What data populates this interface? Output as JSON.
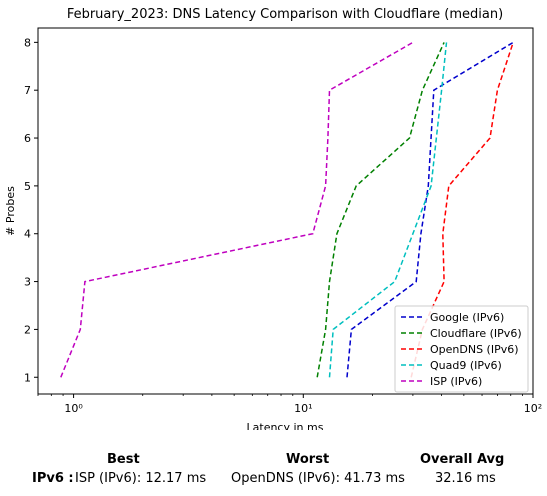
{
  "chart_data": {
    "type": "line",
    "title": "February_2023: DNS Latency Comparison with Cloudflare (median)",
    "xlabel": "Latency in ms",
    "ylabel": "# Probes",
    "xscale": "log",
    "xlim": [
      0.7,
      100
    ],
    "ylim": [
      0.65,
      8.3
    ],
    "xticks": [
      {
        "value": 1,
        "label": "10⁰"
      },
      {
        "value": 10,
        "label": "10¹"
      },
      {
        "value": 100,
        "label": "10²"
      }
    ],
    "yticks": [
      1,
      2,
      3,
      4,
      5,
      6,
      7,
      8
    ],
    "grid": false,
    "legend_position": "lower-right",
    "series": [
      {
        "name": "Google (IPv6)",
        "color": "#0000cc",
        "x": [
          15.5,
          16.2,
          31.0,
          32.5,
          35.0,
          37.0,
          82.0
        ],
        "y": [
          1,
          2,
          3,
          4,
          5,
          7,
          8
        ]
      },
      {
        "name": "Cloudflare (IPv6)",
        "color": "#008000",
        "x": [
          11.5,
          12.5,
          13.0,
          14.0,
          17.0,
          29.0,
          33.0,
          41.0
        ],
        "y": [
          1,
          2,
          3,
          4,
          5,
          6,
          7,
          8
        ]
      },
      {
        "name": "OpenDNS (IPv6)",
        "color": "#ff0000",
        "x": [
          29.5,
          33.0,
          41.0,
          40.5,
          43.0,
          65.0,
          70.0,
          82.0
        ],
        "y": [
          1,
          2,
          3,
          4,
          5,
          6,
          7,
          8
        ]
      },
      {
        "name": "Quad9 (IPv6)",
        "color": "#00bfbf",
        "x": [
          13.0,
          13.5,
          25.0,
          30.0,
          36.0,
          40.0,
          42.0
        ],
        "y": [
          1,
          2,
          3,
          4,
          5,
          7,
          8
        ]
      },
      {
        "name": "ISP (IPv6)",
        "color": "#bf00bf",
        "x": [
          0.88,
          1.07,
          1.12,
          11.0,
          12.5,
          12.8,
          13.0,
          30.0
        ],
        "y": [
          1,
          2,
          3,
          4,
          5,
          6,
          7,
          8
        ]
      }
    ]
  },
  "summary": {
    "best_header": "Best",
    "worst_header": "Worst",
    "avg_header": "Overall Avg",
    "row_label": "IPv6 :",
    "best_value": "ISP (IPv6): 12.17 ms",
    "worst_value": "OpenDNS (IPv6): 41.73 ms",
    "avg_value": "32.16 ms"
  }
}
